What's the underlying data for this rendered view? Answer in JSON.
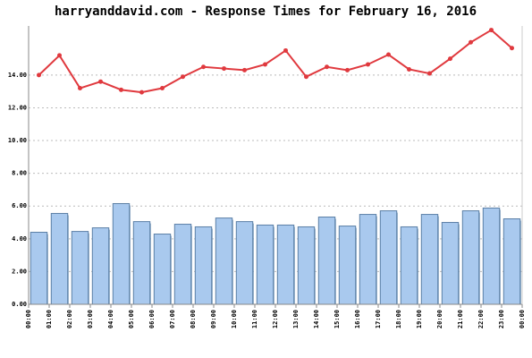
{
  "chart_data": {
    "type": "bar-line",
    "title": "harryanddavid.com - Response Times for February 16, 2016",
    "xticks": [
      "00:00",
      "01:00",
      "02:00",
      "03:00",
      "04:00",
      "05:00",
      "06:00",
      "07:00",
      "08:00",
      "09:00",
      "10:00",
      "11:00",
      "12:00",
      "13:00",
      "14:00",
      "15:00",
      "16:00",
      "17:00",
      "18:00",
      "19:00",
      "20:00",
      "21:00",
      "22:00",
      "23:00",
      "00:00"
    ],
    "series": [
      {
        "type": "bar",
        "color": "#a9c9ee",
        "values": [
          4.4,
          5.55,
          4.45,
          4.67,
          6.15,
          5.05,
          4.29,
          4.89,
          4.73,
          5.27,
          5.05,
          4.84,
          4.84,
          4.73,
          5.33,
          4.78,
          5.49,
          5.71,
          4.73,
          5.49,
          5.0,
          5.71,
          5.88,
          5.22
        ]
      },
      {
        "type": "line",
        "color": "#e0393e",
        "values": [
          14.0,
          15.2,
          13.2,
          13.6,
          13.1,
          12.95,
          13.2,
          13.9,
          14.5,
          14.4,
          14.3,
          14.65,
          15.5,
          13.9,
          14.5,
          14.3,
          14.65,
          15.25,
          14.35,
          14.1,
          15.0,
          16.0,
          16.75,
          15.65
        ]
      }
    ],
    "ylim": [
      0,
      17
    ],
    "yticks": [
      {
        "value": 0,
        "label": "0.00"
      },
      {
        "value": 2,
        "label": "2.00"
      },
      {
        "value": 4,
        "label": "4.00"
      },
      {
        "value": 6,
        "label": "6.00"
      },
      {
        "value": 8,
        "label": "8.00"
      },
      {
        "value": 10,
        "label": "10.00"
      },
      {
        "value": 12,
        "label": "12.00"
      },
      {
        "value": 14,
        "label": "14.00"
      }
    ],
    "grid": true
  }
}
